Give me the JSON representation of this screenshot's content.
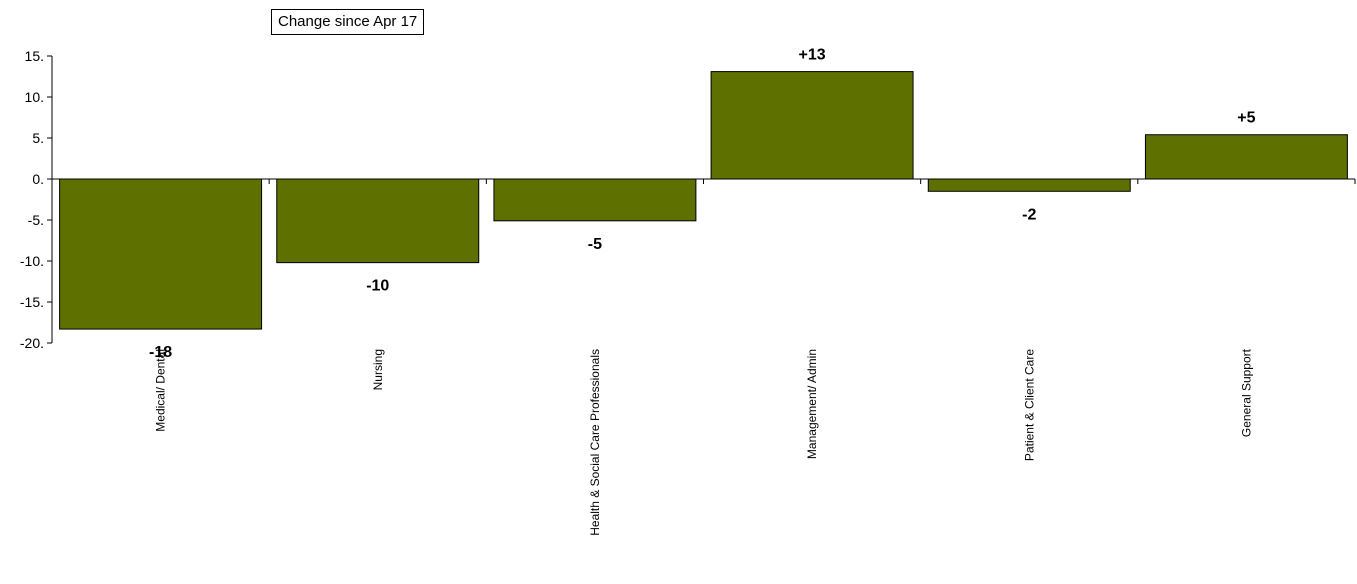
{
  "chart_data": {
    "type": "bar",
    "title": "",
    "legend": "Change since Apr 17",
    "categories": [
      "Medical/ Dental",
      "Nursing",
      "Health & Social Care Professionals",
      "Management/ Admin",
      "Patient & Client Care",
      "General Support"
    ],
    "values": [
      -18.3,
      -10.2,
      -5.1,
      13.1,
      -1.5,
      5.4
    ],
    "data_labels": [
      "-18",
      "-10",
      "-5",
      "+13",
      "-2",
      "+5"
    ],
    "y_ticks": [
      "15.",
      "10.",
      "5.",
      "0.",
      "-5.",
      "-10.",
      "-15.",
      "-20."
    ],
    "y_tick_values": [
      15,
      10,
      5,
      0,
      -5,
      -10,
      -15,
      -20
    ],
    "ylim": [
      -20,
      15
    ],
    "bar_color": "#5e7000",
    "grid": false
  }
}
